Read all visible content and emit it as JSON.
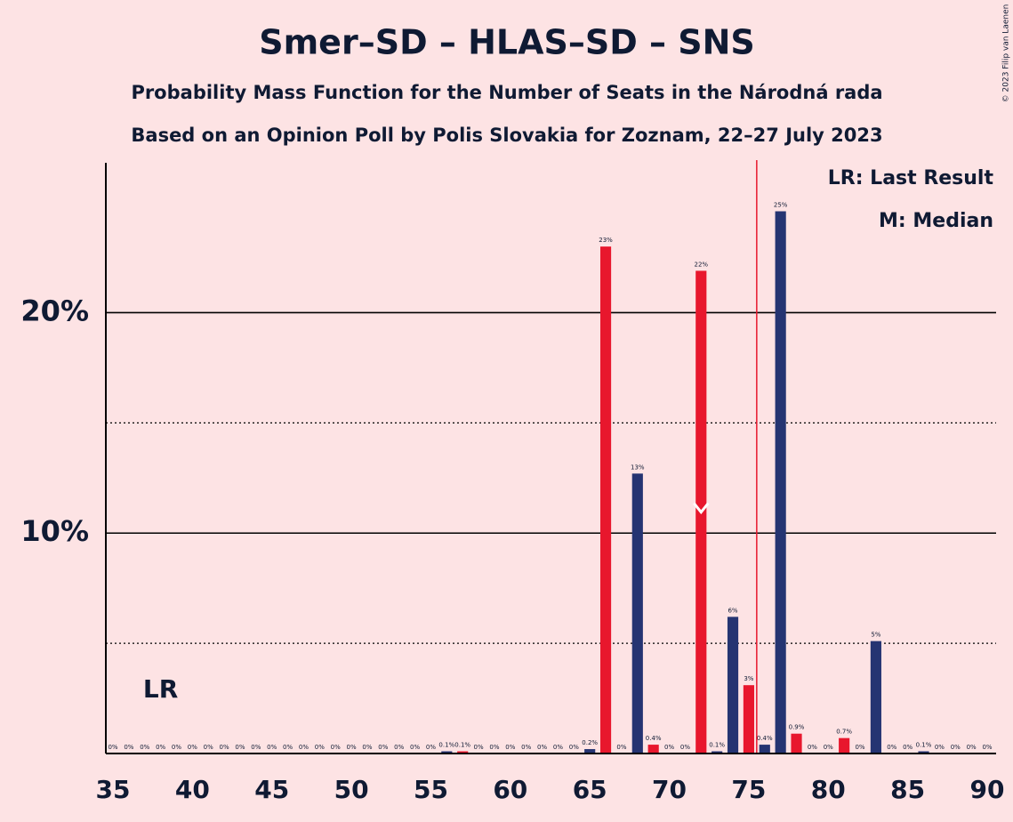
{
  "chart_data": {
    "type": "bar",
    "title": "Smer–SD – HLAS–SD – SNS",
    "subtitle": "Probability Mass Function for the Number of Seats in the Národná rada",
    "subtitle2": "Based on an Opinion Poll by Polis Slovakia for Zoznam, 22–27 July 2023",
    "copyright": "© 2023 Filip van Laenen",
    "legend": [
      "LR: Last Result",
      "M: Median"
    ],
    "last_result": 38,
    "last_result_label": "LR",
    "median": 72,
    "majority_line": 75.5,
    "x": [
      35,
      36,
      37,
      38,
      39,
      40,
      41,
      42,
      43,
      44,
      45,
      46,
      47,
      48,
      49,
      50,
      51,
      52,
      53,
      54,
      55,
      56,
      57,
      58,
      59,
      60,
      61,
      62,
      63,
      64,
      65,
      66,
      67,
      68,
      69,
      70,
      71,
      72,
      73,
      74,
      75,
      76,
      77,
      78,
      79,
      80,
      81,
      82,
      83,
      84,
      85,
      86,
      87,
      88,
      89,
      90
    ],
    "values": [
      0,
      0,
      0,
      0,
      0,
      0,
      0,
      0,
      0,
      0,
      0,
      0,
      0,
      0,
      0,
      0,
      0,
      0,
      0,
      0,
      0,
      0.1,
      0.1,
      0,
      0,
      0,
      0,
      0,
      0,
      0,
      0.2,
      23,
      0,
      12.7,
      0.4,
      0,
      0,
      21.9,
      0.1,
      6.2,
      3.1,
      0.4,
      24.6,
      0.9,
      0,
      0,
      0.7,
      0,
      5.1,
      0,
      0,
      0.1,
      0,
      0,
      0,
      0
    ],
    "value_labels": [
      "0%",
      "0%",
      "0%",
      "0%",
      "0%",
      "0%",
      "0%",
      "0%",
      "0%",
      "0%",
      "0%",
      "0%",
      "0%",
      "0%",
      "0%",
      "0%",
      "0%",
      "0%",
      "0%",
      "0%",
      "0%",
      "0.1%",
      "0.1%",
      "0%",
      "0%",
      "0%",
      "0%",
      "0%",
      "0%",
      "0%",
      "0.2%",
      "23%",
      "0%",
      "13%",
      "0.4%",
      "0%",
      "0%",
      "22%",
      "0.1%",
      "6%",
      "3%",
      "0.4%",
      "25%",
      "0.9%",
      "0%",
      "0%",
      "0.7%",
      "0%",
      "5%",
      "0%",
      "0%",
      "0.1%",
      "0%",
      "0%",
      "0%",
      "0%"
    ],
    "colors": [
      "#253472",
      "#253472",
      "#253472",
      "#253472",
      "#253472",
      "#253472",
      "#253472",
      "#253472",
      "#253472",
      "#253472",
      "#253472",
      "#253472",
      "#253472",
      "#253472",
      "#253472",
      "#253472",
      "#253472",
      "#253472",
      "#253472",
      "#253472",
      "#253472",
      "#253472",
      "#e8172d",
      "#253472",
      "#253472",
      "#253472",
      "#253472",
      "#253472",
      "#253472",
      "#253472",
      "#253472",
      "#e8172d",
      "#253472",
      "#253472",
      "#e8172d",
      "#253472",
      "#253472",
      "#e8172d",
      "#253472",
      "#253472",
      "#e8172d",
      "#253472",
      "#253472",
      "#e8172d",
      "#253472",
      "#253472",
      "#e8172d",
      "#253472",
      "#253472",
      "#253472",
      "#253472",
      "#253472",
      "#253472",
      "#253472",
      "#253472",
      "#253472"
    ],
    "xlim": [
      35,
      90
    ],
    "xticks": [
      35,
      40,
      45,
      50,
      55,
      60,
      65,
      70,
      75,
      80,
      85,
      90
    ],
    "ylim": [
      0,
      26.8
    ],
    "yticks": [
      {
        "value": 10,
        "label": "10%"
      },
      {
        "value": 20,
        "label": "20%"
      }
    ],
    "minor_grid": [
      5,
      15
    ]
  }
}
